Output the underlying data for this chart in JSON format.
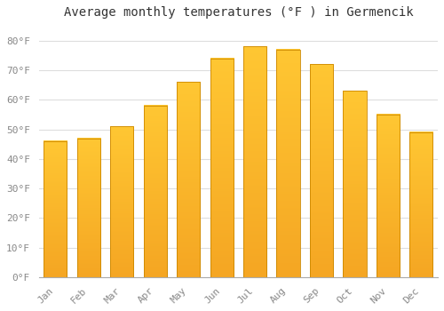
{
  "title": "Average monthly temperatures (°F ) in Germencik",
  "months": [
    "Jan",
    "Feb",
    "Mar",
    "Apr",
    "May",
    "Jun",
    "Jul",
    "Aug",
    "Sep",
    "Oct",
    "Nov",
    "Dec"
  ],
  "values": [
    46,
    47,
    51,
    58,
    66,
    74,
    78,
    77,
    72,
    63,
    55,
    49
  ],
  "bar_color_bottom": "#F5A623",
  "bar_color_top": "#FFC733",
  "bar_edge_color": "#CC8800",
  "background_color": "#FFFFFF",
  "grid_color": "#DDDDDD",
  "ylim": [
    0,
    85
  ],
  "yticks": [
    0,
    10,
    20,
    30,
    40,
    50,
    60,
    70,
    80
  ],
  "ytick_labels": [
    "0°F",
    "10°F",
    "20°F",
    "30°F",
    "40°F",
    "50°F",
    "60°F",
    "70°F",
    "80°F"
  ],
  "tick_label_color": "#888888",
  "title_fontsize": 10,
  "tick_fontsize": 8
}
